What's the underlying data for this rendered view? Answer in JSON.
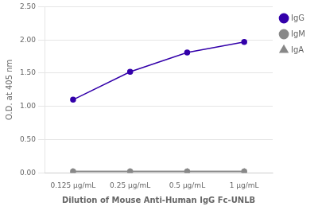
{
  "chart_data": {
    "type": "line",
    "xlabel": "Dilution of Mouse Anti-Human IgG Fc-UNLB",
    "ylabel": "O.D. at 405 nm",
    "categories": [
      "0.125 μg/mL",
      "0.25 μg/mL",
      "0.5 μg/mL",
      "1 μg/mL"
    ],
    "series": [
      {
        "name": "IgG",
        "color": "#3300aa",
        "marker": "circle",
        "values": [
          1.1,
          1.52,
          1.81,
          1.97
        ]
      },
      {
        "name": "IgM",
        "color": "#888888",
        "marker": "circle",
        "values": [
          0.02,
          0.02,
          0.02,
          0.02
        ]
      },
      {
        "name": "IgA",
        "color": "#888888",
        "marker": "triangle",
        "values": [
          0.02,
          0.02,
          0.02,
          0.02
        ]
      }
    ],
    "ylim": [
      0.0,
      2.5
    ],
    "yticks": [
      {
        "value": 0,
        "label": "0.00"
      },
      {
        "value": 0.5,
        "label": "0.50"
      },
      {
        "value": 1,
        "label": "1.00"
      },
      {
        "value": 1.5,
        "label": "1.50"
      },
      {
        "value": 2,
        "label": "2.00"
      },
      {
        "value": 2.5,
        "label": "2.50"
      }
    ],
    "grid": true,
    "legend": "right"
  }
}
